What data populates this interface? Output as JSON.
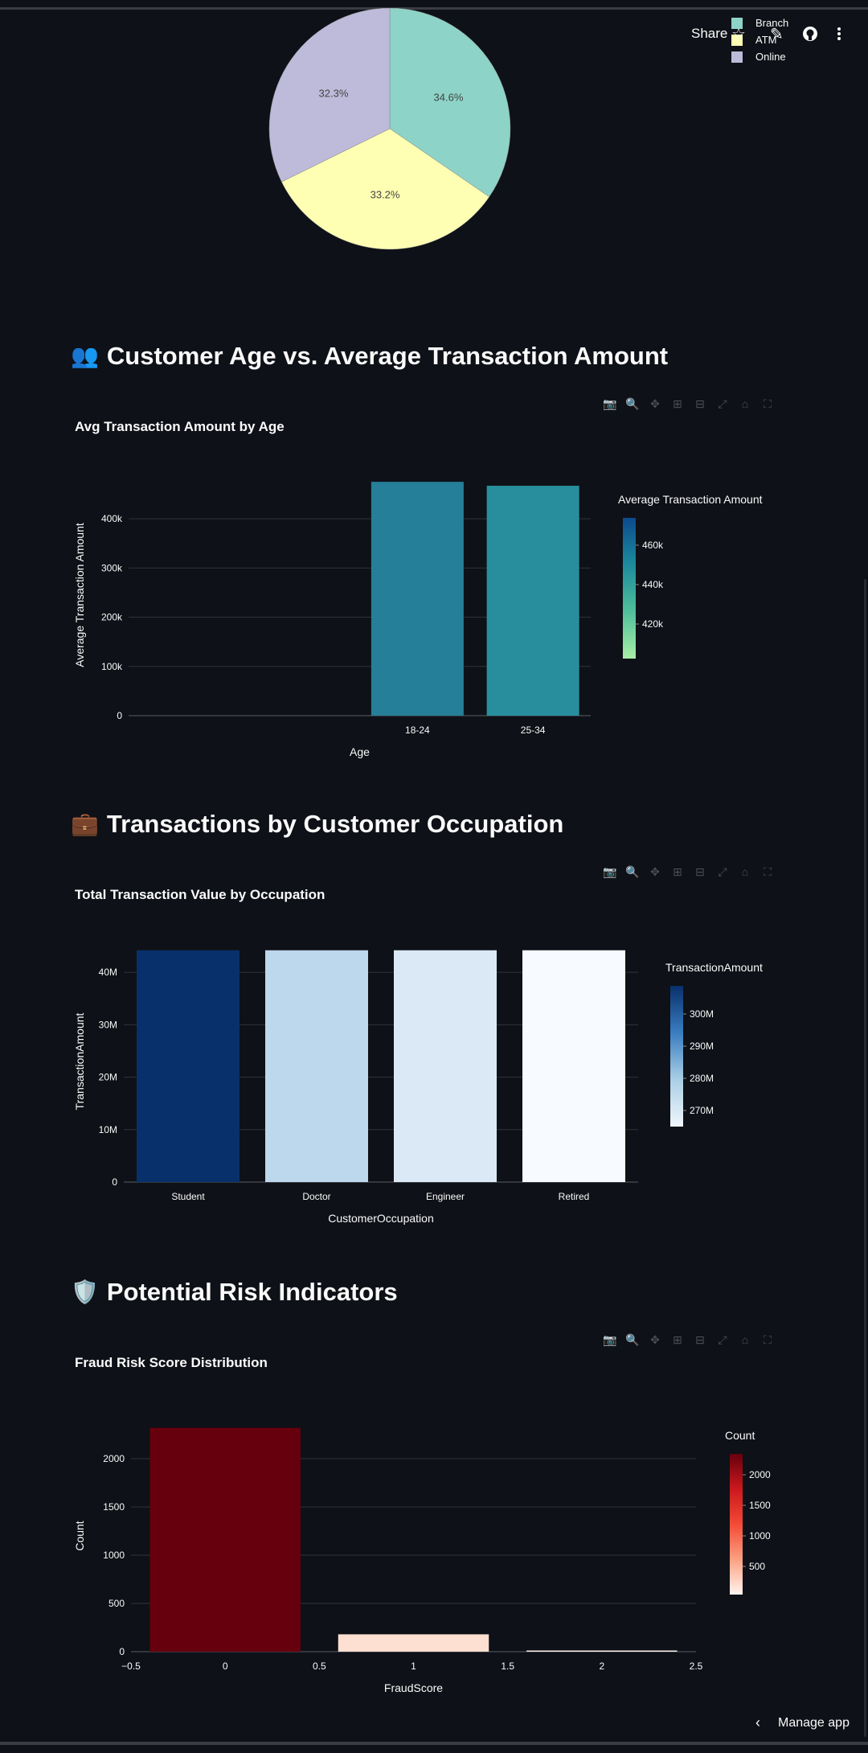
{
  "header": {
    "share_label": "Share",
    "icons": [
      "star-icon",
      "edit-icon",
      "github-icon",
      "more-menu-icon"
    ]
  },
  "pie": {
    "chart_data": {
      "type": "pie",
      "labels": [
        "Branch",
        "ATM",
        "Online"
      ],
      "values": [
        34.6,
        33.2,
        32.3
      ],
      "value_labels": [
        "34.6%",
        "33.2%",
        "32.3%"
      ],
      "colors": [
        "#8dd3c7",
        "#ffffb3",
        "#bebada"
      ],
      "legend_position": "top-right"
    }
  },
  "sections": {
    "age": {
      "emoji": "👥",
      "heading": "Customer Age vs. Average Transaction Amount"
    },
    "occupation": {
      "emoji": "💼",
      "heading": "Transactions by Customer Occupation"
    },
    "risk": {
      "emoji": "🛡️",
      "heading": "Potential Risk Indicators"
    }
  },
  "charts": {
    "age": {
      "chart_data": {
        "type": "bar",
        "title": "Avg Transaction Amount by Age",
        "xlabel": "Age",
        "ylabel": "Average Transaction Amount",
        "categories": [
          "18-24",
          "25-34"
        ],
        "values": [
          475000,
          467000
        ],
        "ylim": [
          0,
          490000
        ],
        "yticks": [
          0,
          100000,
          200000,
          300000,
          400000
        ],
        "ytick_labels": [
          "0",
          "100k",
          "200k",
          "300k",
          "400k"
        ],
        "colors": [
          "#257f99",
          "#288e9e"
        ],
        "colorbar": {
          "title": "Average Transaction Amount",
          "tick_labels": [
            "460k",
            "440k",
            "420k"
          ],
          "colors": [
            "#0c4a8e",
            "#1d8b9c",
            "#50bf9b",
            "#a8eea5"
          ]
        }
      }
    },
    "occupation": {
      "chart_data": {
        "type": "bar",
        "title": "Total Transaction Value by Occupation",
        "xlabel": "CustomerOccupation",
        "ylabel": "TransactionAmount",
        "categories": [
          "Student",
          "Doctor",
          "Engineer",
          "Retired"
        ],
        "values": [
          44200000,
          44200000,
          44200000,
          44200000
        ],
        "ylim": [
          0,
          46000000
        ],
        "yticks": [
          0,
          10000000,
          20000000,
          30000000,
          40000000
        ],
        "ytick_labels": [
          "0",
          "10M",
          "20M",
          "30M",
          "40M"
        ],
        "colors": [
          "#08306b",
          "#bdd7ec",
          "#dbe9f6",
          "#f7fbff"
        ],
        "colorbar": {
          "title": "TransactionAmount",
          "tick_labels": [
            "300M",
            "290M",
            "280M",
            "270M"
          ],
          "colors": [
            "#08306b",
            "#3a7dc0",
            "#a9cfe6",
            "#f1f6fc"
          ]
        }
      }
    },
    "risk": {
      "chart_data": {
        "type": "bar",
        "title": "Fraud Risk Score Distribution",
        "xlabel": "FraudScore",
        "ylabel": "Count",
        "categories": [
          "0",
          "1",
          "2"
        ],
        "x": [
          0,
          1,
          2
        ],
        "values": [
          2320,
          180,
          12
        ],
        "ylim": [
          0,
          2400
        ],
        "xlim": [
          -0.5,
          2.5
        ],
        "yticks": [
          0,
          500,
          1000,
          1500,
          2000
        ],
        "ytick_labels": [
          "0",
          "500",
          "1000",
          "1500",
          "2000"
        ],
        "xticks": [
          -0.5,
          0,
          0.5,
          1,
          1.5,
          2,
          2.5
        ],
        "xtick_labels": [
          "−0.5",
          "0",
          "0.5",
          "1",
          "1.5",
          "2",
          "2.5"
        ],
        "colors": [
          "#67000d",
          "#fee0d2",
          "#fff5f0"
        ],
        "colorbar": {
          "title": "Count",
          "tick_labels": [
            "2000",
            "1500",
            "1000",
            "500"
          ],
          "colors": [
            "#67000d",
            "#cb181d",
            "#f34a36",
            "#fca082",
            "#fff5f0"
          ]
        }
      }
    }
  },
  "toolbar_icons": [
    "camera-icon",
    "zoom-icon",
    "pan-icon",
    "zoom-in-icon",
    "zoom-out-icon",
    "autoscale-icon",
    "reset-axes-icon",
    "fullscreen-icon"
  ],
  "footer": {
    "manage_label": "Manage app"
  }
}
